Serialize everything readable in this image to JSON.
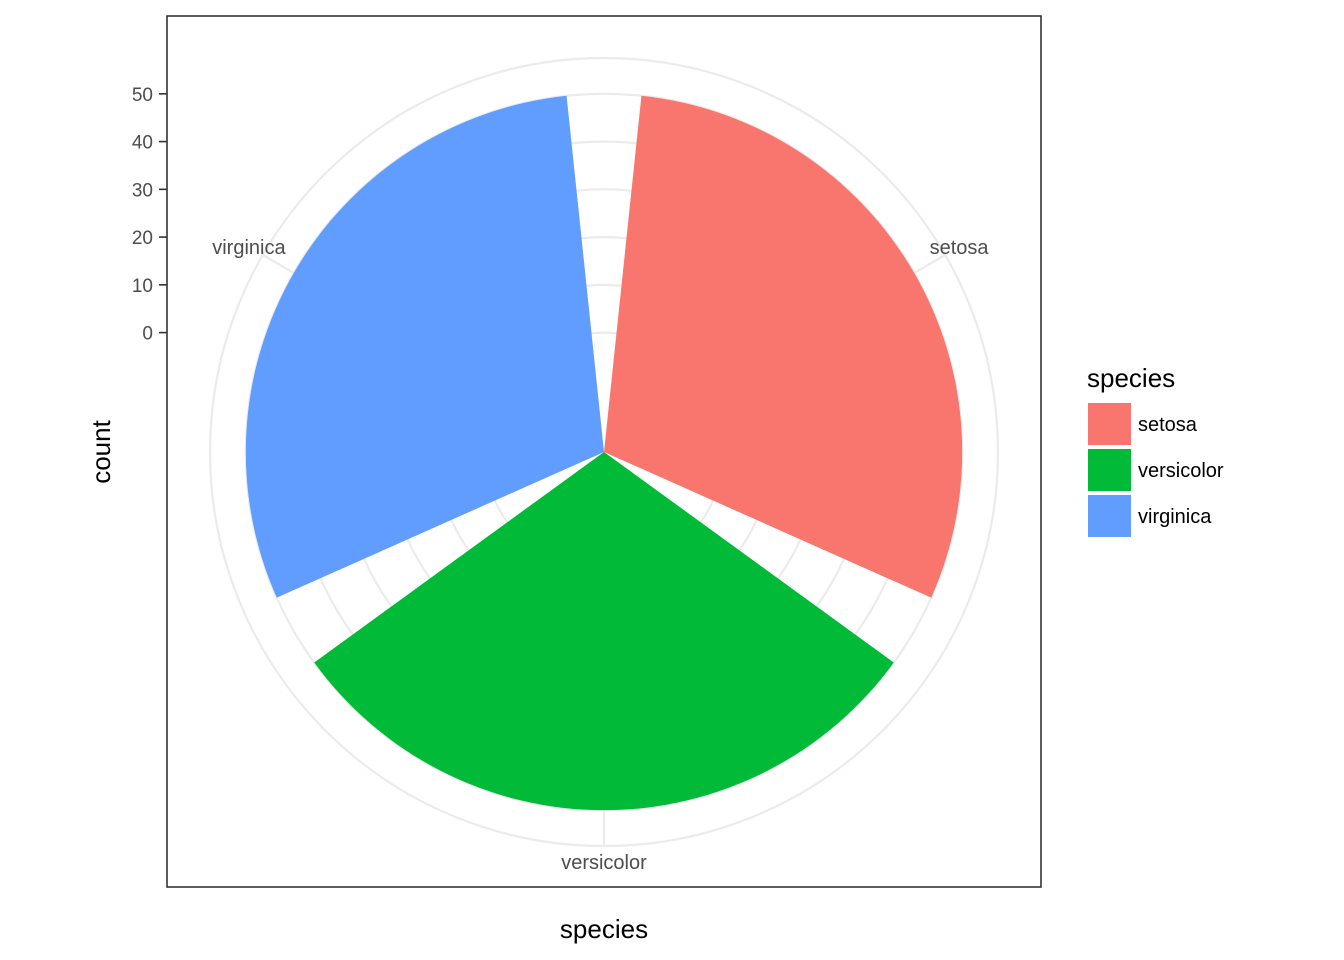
{
  "chart_data": {
    "type": "bar",
    "coord": "polar",
    "categories": [
      "setosa",
      "versicolor",
      "virginica"
    ],
    "values": [
      50,
      50,
      50
    ],
    "colors": [
      "#F8766D",
      "#00BA38",
      "#619CFF"
    ],
    "xlabel": "species",
    "ylabel": "count",
    "yticks": [
      0,
      10,
      20,
      30,
      40,
      50
    ],
    "ylim": [
      -25,
      57.5
    ],
    "grid": true,
    "legend": {
      "title": "species",
      "position": "right",
      "entries": [
        "setosa",
        "versicolor",
        "virginica"
      ]
    }
  }
}
